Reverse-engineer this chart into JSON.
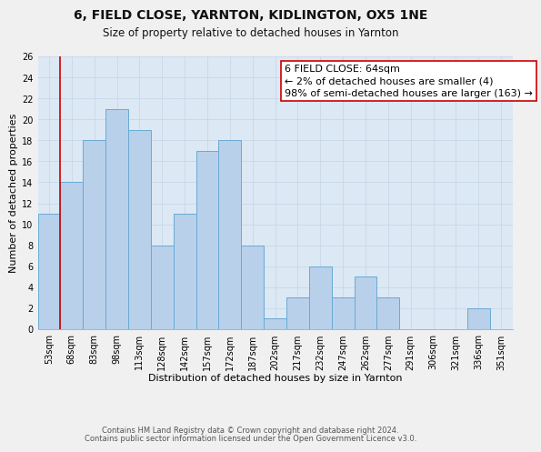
{
  "title": "6, FIELD CLOSE, YARNTON, KIDLINGTON, OX5 1NE",
  "subtitle": "Size of property relative to detached houses in Yarnton",
  "xlabel": "Distribution of detached houses by size in Yarnton",
  "ylabel": "Number of detached properties",
  "categories": [
    "53sqm",
    "68sqm",
    "83sqm",
    "98sqm",
    "113sqm",
    "128sqm",
    "142sqm",
    "157sqm",
    "172sqm",
    "187sqm",
    "202sqm",
    "217sqm",
    "232sqm",
    "247sqm",
    "262sqm",
    "277sqm",
    "291sqm",
    "306sqm",
    "321sqm",
    "336sqm",
    "351sqm"
  ],
  "values": [
    11,
    14,
    18,
    21,
    19,
    8,
    11,
    17,
    18,
    8,
    1,
    3,
    6,
    3,
    5,
    3,
    0,
    0,
    0,
    2,
    0
  ],
  "bar_color": "#b8d0ea",
  "bar_edge_color": "#6aaad4",
  "highlight_line_color": "#cc0000",
  "annotation_line1": "6 FIELD CLOSE: 64sqm",
  "annotation_line2": "← 2% of detached houses are smaller (4)",
  "annotation_line3": "98% of semi-detached houses are larger (163) →",
  "annotation_box_color": "#ffffff",
  "annotation_box_edge_color": "#cc0000",
  "ylim": [
    0,
    26
  ],
  "yticks": [
    0,
    2,
    4,
    6,
    8,
    10,
    12,
    14,
    16,
    18,
    20,
    22,
    24,
    26
  ],
  "grid_color": "#c8d8e8",
  "background_color": "#dce8f4",
  "footer_line1": "Contains HM Land Registry data © Crown copyright and database right 2024.",
  "footer_line2": "Contains public sector information licensed under the Open Government Licence v3.0.",
  "title_fontsize": 10,
  "subtitle_fontsize": 8.5,
  "xlabel_fontsize": 8,
  "ylabel_fontsize": 8,
  "tick_fontsize": 7,
  "annotation_fontsize": 8,
  "footer_fontsize": 6
}
